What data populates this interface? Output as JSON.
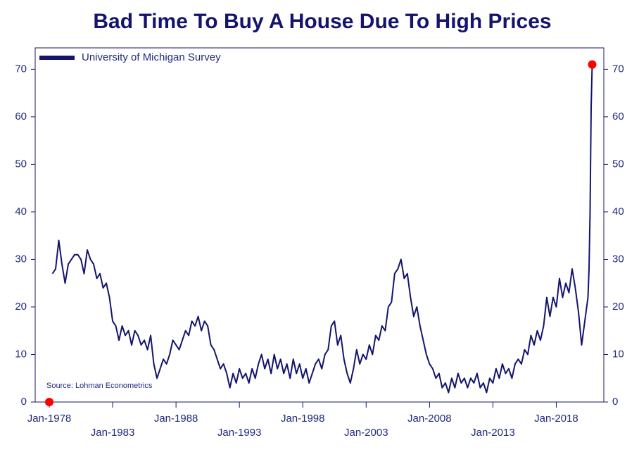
{
  "chart_data": {
    "type": "line",
    "title": "Bad Time To Buy A House Due To High Prices",
    "annotation": "Source: Lohman Econometrics",
    "x": [
      "Apr-1978",
      "Jul-1978",
      "Oct-1978",
      "Jan-1979",
      "Apr-1979",
      "Jul-1979",
      "Oct-1979",
      "Jan-1980",
      "Apr-1980",
      "Jul-1980",
      "Oct-1980",
      "Jan-1981",
      "Apr-1981",
      "Jul-1981",
      "Oct-1981",
      "Jan-1982",
      "Apr-1982",
      "Jul-1982",
      "Oct-1982",
      "Jan-1983",
      "Apr-1983",
      "Jul-1983",
      "Oct-1983",
      "Jan-1984",
      "Apr-1984",
      "Jul-1984",
      "Oct-1984",
      "Jan-1985",
      "Apr-1985",
      "Jul-1985",
      "Oct-1985",
      "Jan-1986",
      "Apr-1986",
      "Jul-1986",
      "Oct-1986",
      "Jan-1987",
      "Apr-1987",
      "Jul-1987",
      "Oct-1987",
      "Jan-1988",
      "Apr-1988",
      "Jul-1988",
      "Oct-1988",
      "Jan-1989",
      "Apr-1989",
      "Jul-1989",
      "Oct-1989",
      "Jan-1990",
      "Apr-1990",
      "Jul-1990",
      "Oct-1990",
      "Jan-1991",
      "Apr-1991",
      "Jul-1991",
      "Oct-1991",
      "Jan-1992",
      "Apr-1992",
      "Jul-1992",
      "Oct-1992",
      "Jan-1993",
      "Apr-1993",
      "Jul-1993",
      "Oct-1993",
      "Jan-1994",
      "Apr-1994",
      "Jul-1994",
      "Oct-1994",
      "Jan-1995",
      "Apr-1995",
      "Jul-1995",
      "Oct-1995",
      "Jan-1996",
      "Apr-1996",
      "Jul-1996",
      "Oct-1996",
      "Jan-1997",
      "Apr-1997",
      "Jul-1997",
      "Oct-1997",
      "Jan-1998",
      "Apr-1998",
      "Jul-1998",
      "Oct-1998",
      "Jan-1999",
      "Apr-1999",
      "Jul-1999",
      "Oct-1999",
      "Jan-2000",
      "Apr-2000",
      "Jul-2000",
      "Oct-2000",
      "Jan-2001",
      "Apr-2001",
      "Jul-2001",
      "Oct-2001",
      "Jan-2002",
      "Apr-2002",
      "Jul-2002",
      "Oct-2002",
      "Jan-2003",
      "Apr-2003",
      "Jul-2003",
      "Oct-2003",
      "Jan-2004",
      "Apr-2004",
      "Jul-2004",
      "Oct-2004",
      "Jan-2005",
      "Apr-2005",
      "Jul-2005",
      "Oct-2005",
      "Jan-2006",
      "Apr-2006",
      "Jul-2006",
      "Oct-2006",
      "Jan-2007",
      "Apr-2007",
      "Jul-2007",
      "Oct-2007",
      "Jan-2008",
      "Apr-2008",
      "Jul-2008",
      "Oct-2008",
      "Jan-2009",
      "Apr-2009",
      "Jul-2009",
      "Oct-2009",
      "Jan-2010",
      "Apr-2010",
      "Jul-2010",
      "Oct-2010",
      "Jan-2011",
      "Apr-2011",
      "Jul-2011",
      "Oct-2011",
      "Jan-2012",
      "Apr-2012",
      "Jul-2012",
      "Oct-2012",
      "Jan-2013",
      "Apr-2013",
      "Jul-2013",
      "Oct-2013",
      "Jan-2014",
      "Apr-2014",
      "Jul-2014",
      "Oct-2014",
      "Jan-2015",
      "Apr-2015",
      "Jul-2015",
      "Oct-2015",
      "Jan-2016",
      "Apr-2016",
      "Jul-2016",
      "Oct-2016",
      "Jan-2017",
      "Apr-2017",
      "Jul-2017",
      "Oct-2017",
      "Jan-2018",
      "Apr-2018",
      "Jul-2018",
      "Oct-2018",
      "Jan-2019",
      "Apr-2019",
      "Jul-2019",
      "Oct-2019",
      "Jan-2020",
      "Apr-2020",
      "Jul-2020",
      "Aug-2020",
      "Sep-2020",
      "Oct-2020",
      "Nov-2020"
    ],
    "series": [
      {
        "name": "University of Michigan Survey",
        "color": "#14146e",
        "values": [
          27,
          28,
          34,
          29,
          25,
          29,
          30,
          31,
          31,
          30,
          27,
          32,
          30,
          29,
          26,
          27,
          24,
          25,
          22,
          17,
          16,
          13,
          16,
          14,
          15,
          12,
          15,
          14,
          12,
          13,
          11,
          14,
          8,
          5,
          7,
          9,
          8,
          10,
          13,
          12,
          11,
          13,
          15,
          14,
          17,
          16,
          18,
          15,
          17,
          16,
          12,
          11,
          9,
          7,
          8,
          6,
          3,
          6,
          4,
          7,
          5,
          6,
          4,
          7,
          5,
          8,
          10,
          7,
          9,
          6,
          10,
          7,
          9,
          6,
          8,
          5,
          9,
          6,
          8,
          5,
          7,
          4,
          6,
          8,
          9,
          7,
          10,
          11,
          16,
          17,
          12,
          14,
          9,
          6,
          4,
          7,
          11,
          8,
          10,
          9,
          12,
          10,
          14,
          13,
          16,
          15,
          20,
          21,
          27,
          28,
          30,
          26,
          27,
          22,
          18,
          20,
          16,
          13,
          10,
          8,
          7,
          5,
          6,
          3,
          4,
          2,
          5,
          3,
          6,
          4,
          5,
          3,
          5,
          4,
          6,
          3,
          4,
          2,
          5,
          4,
          7,
          5,
          8,
          6,
          7,
          5,
          8,
          9,
          8,
          11,
          10,
          14,
          12,
          15,
          13,
          16,
          22,
          18,
          22,
          20,
          26,
          22,
          25,
          23,
          28,
          24,
          19,
          12,
          17,
          22,
          28,
          40,
          62,
          71
        ]
      }
    ],
    "highlights": {
      "x": [
        "Jan-1978",
        "Nov-2020"
      ],
      "values": [
        0,
        71
      ],
      "color": "#ff0000"
    },
    "xlim": [
      "Jan-1978",
      "Oct-2021"
    ],
    "xticks": [
      "Jan-1978",
      "Jan-1983",
      "Jan-1988",
      "Jan-1993",
      "Jan-1998",
      "Jan-2003",
      "Jan-2008",
      "Jan-2013",
      "Jan-2018"
    ],
    "ylim": [
      0,
      74.5
    ],
    "yticks": [
      0,
      10,
      20,
      30,
      40,
      50,
      60,
      70
    ],
    "y2lim": [
      0,
      74.5
    ],
    "y2ticks": [
      0,
      10,
      20,
      30,
      40,
      50,
      60,
      70
    ],
    "legend": "top-left",
    "grid": false
  }
}
